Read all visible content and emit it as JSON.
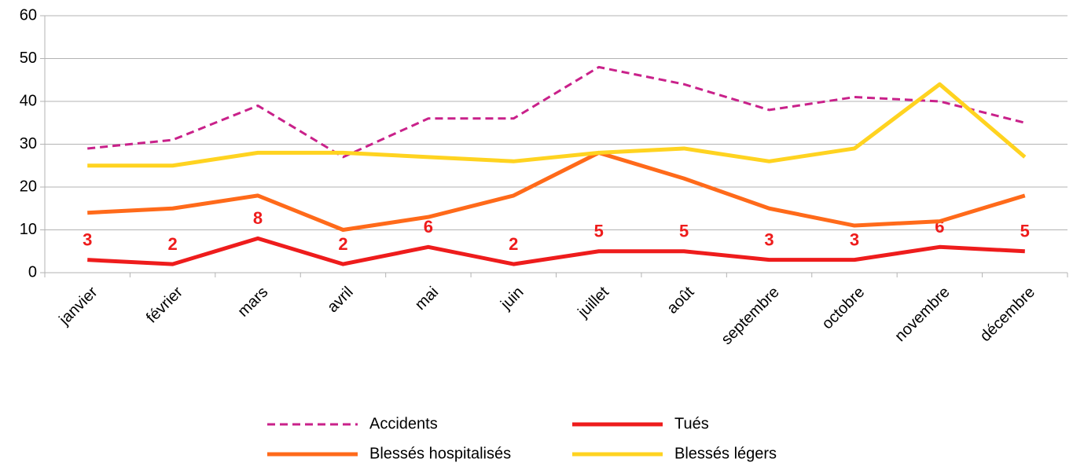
{
  "chart_data": {
    "type": "line",
    "categories": [
      "janvier",
      "février",
      "mars",
      "avril",
      "mai",
      "juin",
      "juillet",
      "août",
      "septembre",
      "octobre",
      "novembre",
      "décembre"
    ],
    "series": [
      {
        "name": "Accidents",
        "color": "#c9218a",
        "line_style": "dashed",
        "values": [
          29,
          31,
          39,
          27,
          36,
          36,
          48,
          44,
          38,
          41,
          40,
          35
        ]
      },
      {
        "name": "Tués",
        "color": "#ee1c1c",
        "line_style": "solid",
        "data_labels": true,
        "values": [
          3,
          2,
          8,
          2,
          6,
          2,
          5,
          5,
          3,
          3,
          6,
          5
        ]
      },
      {
        "name": "Blessés hospitalisés",
        "color": "#ff6a1a",
        "line_style": "solid",
        "values": [
          14,
          15,
          18,
          10,
          13,
          18,
          28,
          22,
          15,
          11,
          12,
          18
        ]
      },
      {
        "name": "Blessés légers",
        "color": "#ffd320",
        "line_style": "solid",
        "values": [
          25,
          25,
          28,
          28,
          27,
          26,
          28,
          29,
          26,
          29,
          44,
          27
        ]
      }
    ],
    "ylim": [
      0,
      60
    ],
    "yticks": [
      0,
      10,
      20,
      30,
      40,
      50,
      60
    ],
    "grid": true,
    "legend": "bottom"
  }
}
